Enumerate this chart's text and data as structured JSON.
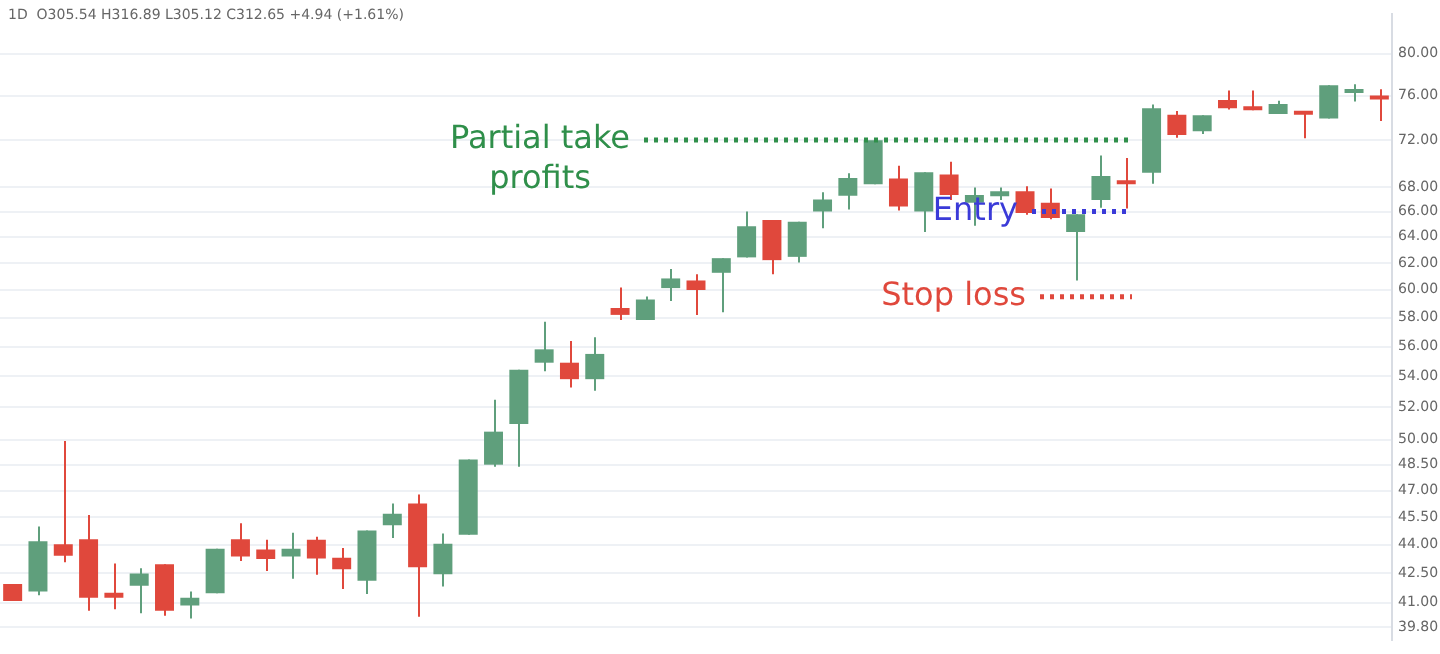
{
  "chart_data": {
    "type": "candlestick",
    "annotations": [
      "1D  O305.54 H316.89 L305.12 C312.65 +4.94 (+1.61%)"
    ],
    "categories": [
      null,
      null,
      null,
      null,
      null,
      null,
      null,
      null,
      null,
      null,
      null,
      null,
      null,
      null,
      null,
      null,
      null,
      null,
      null,
      null,
      null,
      null,
      null,
      null,
      null,
      null,
      null,
      null,
      null,
      null,
      null,
      null,
      null,
      null,
      null,
      null,
      null,
      null,
      null,
      null,
      null,
      null,
      null,
      null,
      null,
      null,
      null,
      null,
      null,
      null,
      null,
      null,
      null,
      null,
      null
    ],
    "ohlc": [
      [
        41.95,
        41.95,
        41.08,
        41.08
      ],
      [
        41.56,
        44.98,
        41.37,
        44.18
      ],
      [
        44.02,
        49.92,
        43.07,
        43.41
      ],
      [
        44.29,
        45.62,
        40.6,
        41.25
      ],
      [
        41.5,
        43.01,
        40.67,
        41.25
      ],
      [
        41.85,
        42.75,
        40.48,
        42.48
      ],
      [
        42.97,
        42.97,
        40.35,
        40.6
      ],
      [
        40.86,
        41.56,
        40.22,
        41.25
      ],
      [
        41.47,
        43.78,
        41.47,
        43.78
      ],
      [
        44.29,
        45.16,
        43.14,
        43.37
      ],
      [
        43.74,
        44.26,
        42.61,
        43.24
      ],
      [
        43.37,
        44.64,
        42.21,
        43.78
      ],
      [
        44.26,
        44.43,
        42.42,
        43.27
      ],
      [
        43.31,
        43.82,
        41.69,
        42.7
      ],
      [
        42.11,
        44.77,
        41.44,
        44.77
      ],
      [
        45.06,
        46.26,
        44.36,
        45.69
      ],
      [
        46.26,
        46.77,
        40.3,
        42.81
      ],
      [
        42.45,
        44.6,
        41.82,
        44.05
      ],
      [
        44.53,
        48.8,
        44.53,
        48.8
      ],
      [
        48.5,
        52.49,
        48.38,
        50.49
      ],
      [
        50.97,
        54.44,
        48.38,
        54.44
      ],
      [
        54.91,
        57.71,
        54.35,
        55.81
      ],
      [
        54.91,
        56.38,
        53.28,
        53.82
      ],
      [
        53.82,
        56.64,
        53.06,
        55.5
      ],
      [
        58.69,
        60.17,
        57.84,
        58.2
      ],
      [
        57.84,
        59.52,
        57.84,
        59.3
      ],
      [
        60.13,
        61.55,
        59.2,
        60.84
      ],
      [
        60.69,
        61.16,
        58.2,
        59.99
      ],
      [
        61.26,
        62.36,
        58.38,
        62.36
      ],
      [
        62.42,
        66.0,
        62.42,
        64.83
      ],
      [
        65.33,
        65.33,
        61.16,
        62.21
      ],
      [
        62.46,
        65.18,
        62.03,
        65.18
      ],
      [
        66.0,
        67.56,
        64.68,
        66.98
      ],
      [
        67.29,
        69.14,
        66.16,
        68.76
      ],
      [
        68.23,
        71.99,
        68.23,
        71.99
      ],
      [
        68.71,
        69.79,
        66.09,
        66.4
      ],
      [
        66.0,
        69.24,
        64.38,
        69.24
      ],
      [
        69.04,
        70.12,
        66.93,
        67.34
      ],
      [
        66.71,
        67.97,
        64.87,
        67.34
      ],
      [
        67.25,
        67.97,
        66.93,
        67.65
      ],
      [
        67.65,
        68.07,
        65.74,
        65.89
      ],
      [
        66.71,
        67.87,
        65.39,
        65.48
      ],
      [
        64.38,
        65.79,
        60.69,
        65.79
      ],
      [
        66.93,
        70.66,
        66.31,
        68.92
      ],
      [
        68.51,
        70.45,
        66.25,
        68.23
      ],
      [
        69.2,
        75.19,
        68.28,
        74.84
      ],
      [
        74.25,
        74.6,
        72.21,
        72.44
      ],
      [
        72.78,
        74.2,
        72.54,
        74.2
      ],
      [
        75.59,
        76.48,
        74.72,
        74.84
      ],
      [
        74.94,
        76.48,
        74.67,
        74.67
      ],
      [
        74.32,
        75.54,
        74.32,
        75.24
      ],
      [
        74.55,
        74.55,
        72.15,
        74.25
      ],
      [
        73.91,
        76.96,
        73.91,
        76.96
      ],
      [
        76.25,
        77.07,
        75.47,
        76.48
      ],
      [
        76.0,
        76.6,
        73.68,
        75.65
      ]
    ],
    "colors": [
      "#e0483c",
      "#5f9f7c",
      "#e0483c",
      "#e0483c",
      "#e0483c",
      "#5f9f7c",
      "#e0483c",
      "#5f9f7c",
      "#5f9f7c",
      "#e0483c",
      "#e0483c",
      "#5f9f7c",
      "#e0483c",
      "#e0483c",
      "#5f9f7c",
      "#5f9f7c",
      "#e0483c",
      "#5f9f7c",
      "#5f9f7c",
      "#5f9f7c",
      "#5f9f7c",
      "#5f9f7c",
      "#e0483c",
      "#5f9f7c",
      "#e0483c",
      "#5f9f7c",
      "#5f9f7c",
      "#e0483c",
      "#5f9f7c",
      "#5f9f7c",
      "#e0483c",
      "#5f9f7c",
      "#5f9f7c",
      "#5f9f7c",
      "#5f9f7c",
      "#e0483c",
      "#5f9f7c",
      "#e0483c",
      "#5f9f7c",
      "#5f9f7c",
      "#e0483c",
      "#e0483c",
      "#5f9f7c",
      "#5f9f7c",
      "#e0483c",
      "#5f9f7c",
      "#e0483c",
      "#5f9f7c",
      "#e0483c",
      "#e0483c",
      "#5f9f7c",
      "#e0483c",
      "#5f9f7c",
      "#5f9f7c",
      "#e0483c"
    ],
    "log": true,
    "ylim": [
      39.2,
      83.9
    ],
    "yticks": [
      {
        "value": 39.8,
        "label": "39.80"
      },
      {
        "value": 41,
        "label": "41.00"
      },
      {
        "value": 42.5,
        "label": "42.50"
      },
      {
        "value": 44,
        "label": "44.00"
      },
      {
        "value": 45.5,
        "label": "45.50"
      },
      {
        "value": 47,
        "label": "47.00"
      },
      {
        "value": 48.5,
        "label": "48.50"
      },
      {
        "value": 50,
        "label": "50.00"
      },
      {
        "value": 52,
        "label": "52.00"
      },
      {
        "value": 54,
        "label": "54.00"
      },
      {
        "value": 56,
        "label": "56.00"
      },
      {
        "value": 58,
        "label": "58.00"
      },
      {
        "value": 60,
        "label": "60.00"
      },
      {
        "value": 62,
        "label": "62.00"
      },
      {
        "value": 64,
        "label": "64.00"
      },
      {
        "value": 66,
        "label": "66.00"
      },
      {
        "value": 68,
        "label": "68.00"
      },
      {
        "value": 72,
        "label": "72.00"
      },
      {
        "value": 76,
        "label": "76.00"
      },
      {
        "value": 80,
        "label": "80.00"
      }
    ],
    "tick_labels": "y",
    "grid": "y",
    "legend": false,
    "ref_lines": [
      {
        "axis": "y",
        "value": 72.0,
        "label": "Partial take profits",
        "color": "#2f8f4a",
        "line_style": "dotted"
      },
      {
        "axis": "y",
        "value": 66.0,
        "label": "Entry",
        "color": "#3a3ad8",
        "line_style": "dotted"
      },
      {
        "axis": "y",
        "value": 59.5,
        "label": "Stop loss",
        "color": "#e0483c",
        "line_style": "dotted"
      }
    ]
  }
}
